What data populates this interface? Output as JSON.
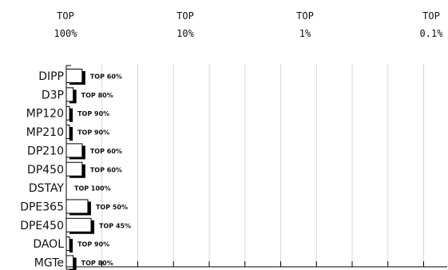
{
  "chart_data": {
    "type": "bar",
    "scale": "log",
    "orientation": "horizontal",
    "top_axis": {
      "tick_values": [
        100,
        10,
        1,
        0.1
      ],
      "tick_labels": [
        {
          "line1": "TOP",
          "line2": "100%"
        },
        {
          "line1": "TOP",
          "line2": "10%"
        },
        {
          "line1": "TOP",
          "line2": "1%"
        },
        {
          "line1": "TOP",
          "line2": "0.1%"
        }
      ]
    },
    "grid": true,
    "categories": [
      "DIPP",
      "D3P",
      "MP120",
      "MP210",
      "DP210",
      "DP450",
      "DSTAY",
      "DPE365",
      "DPE450",
      "DAOL",
      "MGTe"
    ],
    "values": [
      60,
      80,
      90,
      90,
      60,
      60,
      100,
      50,
      45,
      90,
      80
    ],
    "data_labels": [
      "TOP 60%",
      "TOP 80%",
      "TOP 90%",
      "TOP 90%",
      "TOP 60%",
      "TOP 60%",
      "TOP 100%",
      "TOP 50%",
      "TOP 45%",
      "TOP 90%",
      "TOP 80%"
    ],
    "colors": {
      "bar_fill": "#ffffff",
      "bar_shadow": "#000000",
      "grid": "#d8d8d8",
      "axis": "#000000"
    }
  }
}
